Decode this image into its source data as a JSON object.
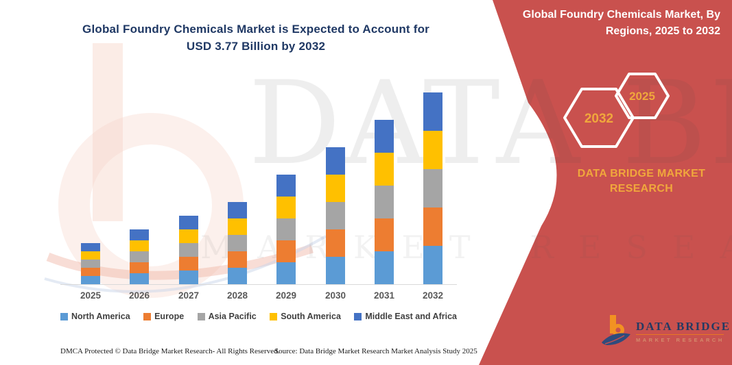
{
  "title": {
    "line1": "Global Foundry Chemicals Market is Expected to Account for",
    "line2": "USD 3.77 Billion by 2032",
    "color": "#1F3864"
  },
  "side_panel": {
    "heading_line1": "Global Foundry Chemicals Market, By",
    "heading_line2": "Regions, 2025 to 2032",
    "hexagons": [
      {
        "label": "2032"
      },
      {
        "label": "2025"
      }
    ],
    "brand_line1": "DATA BRIDGE MARKET",
    "brand_line2": "RESEARCH",
    "bg_color": "#C9514E",
    "accent_color": "#F0A73C"
  },
  "chart_data": {
    "type": "bar",
    "stacked": true,
    "title": "Global Foundry Chemicals Market is Expected to Account for USD 3.77 Billion by 2032",
    "unit": "USD Billion",
    "categories": [
      "2025",
      "2026",
      "2027",
      "2028",
      "2029",
      "2030",
      "2031",
      "2032"
    ],
    "series": [
      {
        "name": "North America",
        "color": "#5B9BD5",
        "values": [
          0.162,
          0.214,
          0.274,
          0.33,
          0.428,
          0.538,
          0.646,
          0.754
        ]
      },
      {
        "name": "Europe",
        "color": "#ED7D31",
        "values": [
          0.162,
          0.214,
          0.274,
          0.33,
          0.428,
          0.538,
          0.646,
          0.754
        ]
      },
      {
        "name": "Asia Pacific",
        "color": "#A5A5A5",
        "values": [
          0.162,
          0.214,
          0.274,
          0.33,
          0.428,
          0.538,
          0.646,
          0.754
        ]
      },
      {
        "name": "South America",
        "color": "#FFC000",
        "values": [
          0.162,
          0.214,
          0.274,
          0.33,
          0.428,
          0.538,
          0.646,
          0.754
        ]
      },
      {
        "name": "Middle East and Africa",
        "color": "#4472C4",
        "values": [
          0.162,
          0.214,
          0.274,
          0.33,
          0.428,
          0.538,
          0.646,
          0.754
        ]
      }
    ],
    "totals": [
      0.81,
      1.07,
      1.37,
      1.65,
      2.14,
      2.69,
      3.23,
      3.77
    ],
    "xlabel": "",
    "ylabel": "",
    "ylim": [
      0,
      4
    ],
    "grid": false,
    "legend_position": "bottom"
  },
  "watermark": {
    "line1": "DATA BRIDGE",
    "line2": "MARKET RESEARCH"
  },
  "footer": {
    "left": "DMCA Protected © Data Bridge Market Research-  All Rights Reserved.",
    "right": "Source: Data Bridge Market Research  Market Analysis Study 2025"
  },
  "logo": {
    "name": "DATA BRIDGE",
    "tagline": "MARKET RESEARCH"
  }
}
